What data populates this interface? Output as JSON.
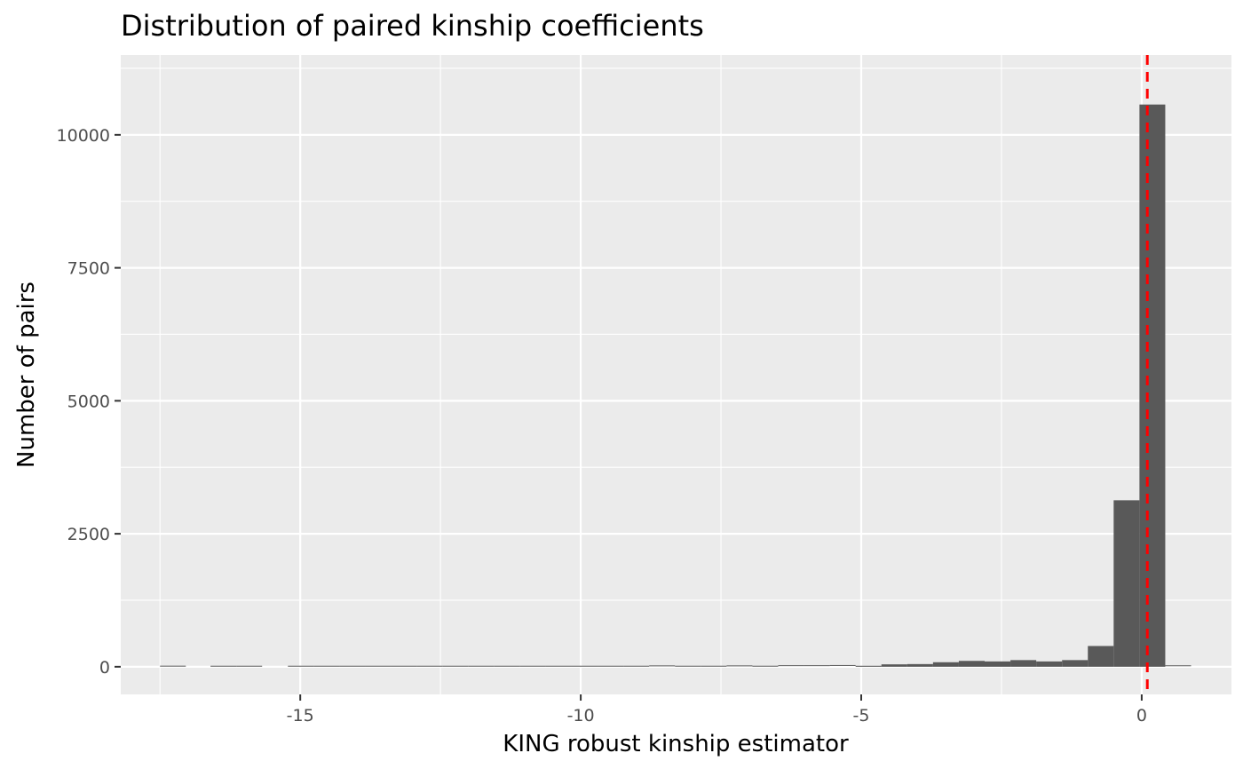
{
  "chart_data": {
    "type": "bar",
    "title": "Distribution of paired kinship coefficients",
    "xlabel": "KING robust kinship estimator",
    "ylabel": "Number of pairs",
    "xlim": [
      -18.2,
      1.6
    ],
    "ylim": [
      -520,
      11500
    ],
    "x_ticks": [
      -15,
      -10,
      -5,
      0
    ],
    "x_tick_labels": [
      "-15",
      "-10",
      "-5",
      "0"
    ],
    "y_ticks": [
      0,
      2500,
      5000,
      7500,
      10000
    ],
    "y_tick_labels": [
      "0",
      "2500",
      "5000",
      "7500",
      "10000"
    ],
    "grid": true,
    "bin_width": 0.46,
    "bins": [
      {
        "x0": -17.5,
        "x1": -17.04,
        "count": 3
      },
      {
        "x0": -16.6,
        "x1": -16.14,
        "count": 2
      },
      {
        "x0": -16.14,
        "x1": -15.68,
        "count": 2
      },
      {
        "x0": -15.22,
        "x1": -14.76,
        "count": 2
      },
      {
        "x0": -14.76,
        "x1": -14.3,
        "count": 2
      },
      {
        "x0": -14.3,
        "x1": -13.84,
        "count": 2
      },
      {
        "x0": -13.84,
        "x1": -13.38,
        "count": 2
      },
      {
        "x0": -13.38,
        "x1": -12.92,
        "count": 2
      },
      {
        "x0": -12.92,
        "x1": -12.46,
        "count": 2
      },
      {
        "x0": -12.46,
        "x1": -12.0,
        "count": 2
      },
      {
        "x0": -12.0,
        "x1": -11.54,
        "count": 2
      },
      {
        "x0": -11.54,
        "x1": -11.08,
        "count": 2
      },
      {
        "x0": -11.08,
        "x1": -10.62,
        "count": 2
      },
      {
        "x0": -10.62,
        "x1": -10.16,
        "count": 2
      },
      {
        "x0": -10.16,
        "x1": -9.7,
        "count": 2
      },
      {
        "x0": -9.7,
        "x1": -9.24,
        "count": 2
      },
      {
        "x0": -9.24,
        "x1": -8.78,
        "count": 2
      },
      {
        "x0": -8.78,
        "x1": -8.32,
        "count": 8
      },
      {
        "x0": -8.32,
        "x1": -7.86,
        "count": 2
      },
      {
        "x0": -7.86,
        "x1": -7.4,
        "count": 2
      },
      {
        "x0": -7.4,
        "x1": -6.94,
        "count": 8
      },
      {
        "x0": -6.94,
        "x1": -6.48,
        "count": 2
      },
      {
        "x0": -6.48,
        "x1": -6.02,
        "count": 12
      },
      {
        "x0": -6.02,
        "x1": -5.56,
        "count": 12
      },
      {
        "x0": -5.56,
        "x1": -5.1,
        "count": 15
      },
      {
        "x0": -5.1,
        "x1": -4.64,
        "count": 18
      },
      {
        "x0": -4.64,
        "x1": -4.18,
        "count": 45
      },
      {
        "x0": -4.18,
        "x1": -3.72,
        "count": 50
      },
      {
        "x0": -3.72,
        "x1": -3.26,
        "count": 85
      },
      {
        "x0": -3.26,
        "x1": -2.8,
        "count": 110
      },
      {
        "x0": -2.8,
        "x1": -2.34,
        "count": 100
      },
      {
        "x0": -2.34,
        "x1": -1.88,
        "count": 125
      },
      {
        "x0": -1.88,
        "x1": -1.42,
        "count": 100
      },
      {
        "x0": -1.42,
        "x1": -0.96,
        "count": 125
      },
      {
        "x0": -0.96,
        "x1": -0.5,
        "count": 390
      },
      {
        "x0": -0.5,
        "x1": -0.04,
        "count": 3130
      },
      {
        "x0": -0.04,
        "x1": 0.42,
        "count": 10570
      },
      {
        "x0": 0.42,
        "x1": 0.88,
        "count": 10
      }
    ],
    "reference_line": {
      "x": 0.1,
      "color": "#ff0000",
      "style": "dashed"
    },
    "colors": {
      "panel_background": "#ebebeb",
      "grid": "#ffffff",
      "bar_fill": "#595959",
      "tick": "#333333"
    }
  }
}
